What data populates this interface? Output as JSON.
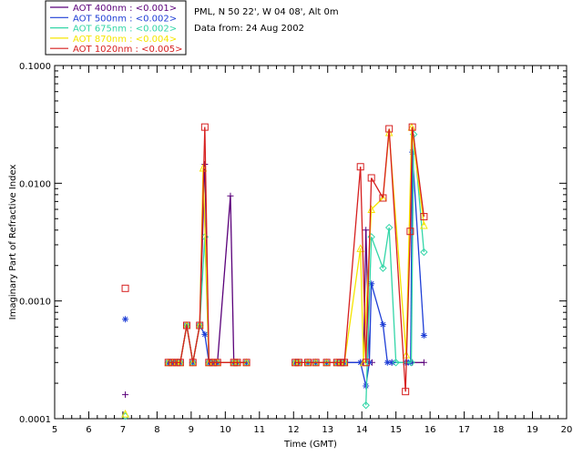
{
  "chart_data": {
    "type": "scatter",
    "title_lines": [
      "PML, N 50 22', W 04 08', Alt 0m",
      "Data from: 24 Aug 2002"
    ],
    "xlabel": "Time (GMT)",
    "ylabel": "Imaginary Part of Refractive Index",
    "xlim": [
      5,
      20
    ],
    "ylim": [
      0.0001,
      0.1
    ],
    "yscale": "log",
    "x_ticks": [
      5,
      6,
      7,
      8,
      9,
      10,
      11,
      12,
      13,
      14,
      15,
      16,
      17,
      18,
      19,
      20
    ],
    "y_ticks": [
      {
        "value": 0.0001,
        "label": "0.0001"
      },
      {
        "value": 0.001,
        "label": "0.0010"
      },
      {
        "value": 0.01,
        "label": "0.0100"
      },
      {
        "value": 0.1,
        "label": "0.1000"
      }
    ],
    "grid": false,
    "legend": "top-left",
    "series": [
      {
        "name": "AOT  400nm : <0.001>",
        "color": "#5a007a",
        "marker": "plus",
        "points": [
          [
            7.07,
            0.00016
          ],
          [
            8.33,
            0.0003
          ],
          [
            8.45,
            0.0003
          ],
          [
            8.58,
            0.0003
          ],
          [
            8.68,
            0.0003
          ],
          [
            8.87,
            0.00062
          ],
          [
            9.05,
            0.0003
          ],
          [
            9.25,
            0.00062
          ],
          [
            9.4,
            0.0145
          ],
          [
            9.52,
            0.0003
          ],
          [
            9.64,
            0.0003
          ],
          [
            9.77,
            0.0003
          ],
          [
            10.15,
            0.0078
          ],
          [
            10.25,
            0.0003
          ],
          [
            10.35,
            0.0003
          ],
          [
            10.62,
            0.0003
          ],
          [
            12.05,
            0.0003
          ],
          [
            12.15,
            0.0003
          ],
          [
            12.42,
            0.0003
          ],
          [
            12.65,
            0.0003
          ],
          [
            12.97,
            0.0003
          ],
          [
            13.27,
            0.0003
          ],
          [
            13.38,
            0.0003
          ],
          [
            13.49,
            0.0003
          ],
          [
            13.96,
            0.0003
          ],
          [
            14.05,
            0.0003
          ],
          [
            14.12,
            0.004
          ],
          [
            14.22,
            0.0003
          ],
          [
            14.3,
            0.0003
          ],
          [
            14.88,
            0.0003
          ],
          [
            15.48,
            0.0003
          ],
          [
            15.82,
            0.0003
          ]
        ]
      },
      {
        "name": "AOT  500nm : <0.002>",
        "color": "#1f3fd6",
        "marker": "asterisk",
        "points": [
          [
            7.07,
            0.0007
          ],
          [
            8.33,
            0.0003
          ],
          [
            8.45,
            0.0003
          ],
          [
            8.58,
            0.0003
          ],
          [
            8.68,
            0.0003
          ],
          [
            8.87,
            0.00062
          ],
          [
            9.05,
            0.0003
          ],
          [
            9.25,
            0.00062
          ],
          [
            9.4,
            0.00052
          ],
          [
            9.52,
            0.0003
          ],
          [
            9.64,
            0.0003
          ],
          [
            9.77,
            0.0003
          ],
          [
            10.25,
            0.0003
          ],
          [
            10.35,
            0.0003
          ],
          [
            10.62,
            0.0003
          ],
          [
            12.05,
            0.0003
          ],
          [
            12.15,
            0.0003
          ],
          [
            12.42,
            0.0003
          ],
          [
            12.65,
            0.0003
          ],
          [
            12.97,
            0.0003
          ],
          [
            13.27,
            0.0003
          ],
          [
            13.38,
            0.0003
          ],
          [
            13.49,
            0.0003
          ],
          [
            13.96,
            0.0003
          ],
          [
            14.12,
            0.00019
          ],
          [
            14.22,
            0.0003
          ],
          [
            14.28,
            0.0014
          ],
          [
            14.62,
            0.00063
          ],
          [
            14.75,
            0.0003
          ],
          [
            14.88,
            0.0003
          ],
          [
            15.28,
            0.0003
          ],
          [
            15.36,
            0.0003
          ],
          [
            15.43,
            0.0003
          ],
          [
            15.48,
            0.0184
          ],
          [
            15.82,
            0.00051
          ]
        ]
      },
      {
        "name": "AOT  675nm : <0.002>",
        "color": "#33d6a8",
        "marker": "diamond",
        "points": [
          [
            7.07,
            0.000105
          ],
          [
            8.33,
            0.0003
          ],
          [
            8.45,
            0.0003
          ],
          [
            8.58,
            0.0003
          ],
          [
            8.68,
            0.0003
          ],
          [
            8.87,
            0.00062
          ],
          [
            9.05,
            0.0003
          ],
          [
            9.25,
            0.00062
          ],
          [
            9.4,
            0.0035
          ],
          [
            9.52,
            0.0003
          ],
          [
            9.64,
            0.0003
          ],
          [
            9.77,
            0.0003
          ],
          [
            10.25,
            0.0003
          ],
          [
            10.35,
            0.0003
          ],
          [
            10.62,
            0.0003
          ],
          [
            12.05,
            0.0003
          ],
          [
            12.15,
            0.0003
          ],
          [
            12.42,
            0.0003
          ],
          [
            12.65,
            0.0003
          ],
          [
            12.97,
            0.0003
          ],
          [
            13.27,
            0.0003
          ],
          [
            13.38,
            0.0003
          ],
          [
            13.49,
            0.0003
          ],
          [
            14.12,
            0.00013
          ],
          [
            14.28,
            0.0035
          ],
          [
            14.62,
            0.0019
          ],
          [
            14.8,
            0.0042
          ],
          [
            15.0,
            0.0003
          ],
          [
            15.45,
            0.0003
          ],
          [
            15.52,
            0.026
          ],
          [
            15.82,
            0.0026
          ]
        ]
      },
      {
        "name": "AOT  870nm : <0.004>",
        "color": "#f5e600",
        "marker": "triangle",
        "points": [
          [
            7.07,
            0.00011
          ],
          [
            8.33,
            0.0003
          ],
          [
            8.45,
            0.0003
          ],
          [
            8.58,
            0.0003
          ],
          [
            8.68,
            0.0003
          ],
          [
            8.87,
            0.00062
          ],
          [
            9.05,
            0.0003
          ],
          [
            9.25,
            0.00062
          ],
          [
            9.35,
            0.0135
          ],
          [
            9.52,
            0.0003
          ],
          [
            9.64,
            0.0003
          ],
          [
            9.77,
            0.0003
          ],
          [
            10.25,
            0.0003
          ],
          [
            10.35,
            0.0003
          ],
          [
            10.62,
            0.0003
          ],
          [
            12.05,
            0.0003
          ],
          [
            12.15,
            0.0003
          ],
          [
            12.42,
            0.0003
          ],
          [
            12.65,
            0.0003
          ],
          [
            12.97,
            0.0003
          ],
          [
            13.27,
            0.0003
          ],
          [
            13.38,
            0.0003
          ],
          [
            13.49,
            0.0003
          ],
          [
            13.96,
            0.0028
          ],
          [
            14.05,
            0.0003
          ],
          [
            14.28,
            0.006
          ],
          [
            14.62,
            0.0075
          ],
          [
            14.8,
            0.027
          ],
          [
            15.3,
            0.00035
          ],
          [
            15.46,
            0.03
          ],
          [
            15.82,
            0.0044
          ]
        ]
      },
      {
        "name": "AOT 1020nm : <0.005>",
        "color": "#d61f1f",
        "marker": "square",
        "points": [
          [
            7.07,
            0.00128
          ],
          [
            8.33,
            0.0003
          ],
          [
            8.45,
            0.0003
          ],
          [
            8.58,
            0.0003
          ],
          [
            8.68,
            0.0003
          ],
          [
            8.87,
            0.00062
          ],
          [
            9.05,
            0.0003
          ],
          [
            9.25,
            0.00062
          ],
          [
            9.4,
            0.03
          ],
          [
            9.52,
            0.0003
          ],
          [
            9.64,
            0.0003
          ],
          [
            9.77,
            0.0003
          ],
          [
            10.25,
            0.0003
          ],
          [
            10.35,
            0.0003
          ],
          [
            10.62,
            0.0003
          ],
          [
            12.05,
            0.0003
          ],
          [
            12.15,
            0.0003
          ],
          [
            12.42,
            0.0003
          ],
          [
            12.65,
            0.0003
          ],
          [
            12.97,
            0.0003
          ],
          [
            13.27,
            0.0003
          ],
          [
            13.38,
            0.0003
          ],
          [
            13.49,
            0.0003
          ],
          [
            13.96,
            0.0138
          ],
          [
            14.12,
            0.0003
          ],
          [
            14.28,
            0.0111
          ],
          [
            14.62,
            0.0075
          ],
          [
            14.8,
            0.029
          ],
          [
            15.28,
            0.00017
          ],
          [
            15.42,
            0.0039
          ],
          [
            15.48,
            0.03
          ],
          [
            15.82,
            0.0052
          ]
        ]
      }
    ]
  }
}
